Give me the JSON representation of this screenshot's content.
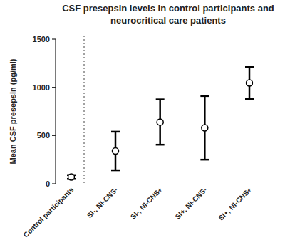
{
  "chart_data": {
    "type": "errorbar",
    "title": "CSF presepsin levels in control participants and neurocritical care patients",
    "y_label": "Mean CSF presepsin (pg/ml)",
    "categories": [
      "Control participants",
      "SI-, NI-CNS-",
      "SI-, NI-CNS+",
      "SI+, NI-CNS-",
      "SI+, NI-CNS+"
    ],
    "values": [
      70,
      340,
      640,
      580,
      1045
    ],
    "errors": [
      20,
      200,
      235,
      330,
      165
    ],
    "color": "#000000",
    "marker": "open-circle",
    "ylim": [
      0,
      1500
    ],
    "yticks": [
      0,
      500,
      1000,
      1500
    ],
    "grid": false
  }
}
